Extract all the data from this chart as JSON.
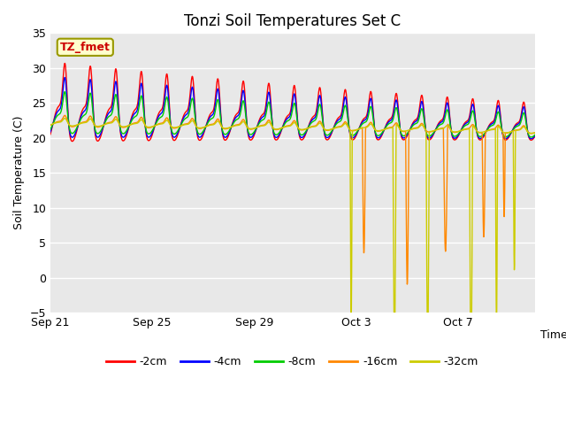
{
  "title": "Tonzi Soil Temperatures Set C",
  "ylabel": "Soil Temperature (C)",
  "xlabel": "Time",
  "ylim": [
    -5,
    35
  ],
  "yticks": [
    -5,
    0,
    5,
    10,
    15,
    20,
    25,
    30,
    35
  ],
  "bg_color": "#e8e8e8",
  "fig_color": "#ffffff",
  "legend_label": "TZ_fmet",
  "series_labels": [
    "-2cm",
    "-4cm",
    "-8cm",
    "-16cm",
    "-32cm"
  ],
  "series_colors": [
    "#ff0000",
    "#0000ff",
    "#00cc00",
    "#ff8800",
    "#cccc00"
  ],
  "xtick_days": [
    0,
    4,
    8,
    12,
    16
  ],
  "xtick_labels": [
    "Sep 21",
    "Sep 25",
    "Sep 29",
    "Oct 3",
    "Oct 7"
  ]
}
